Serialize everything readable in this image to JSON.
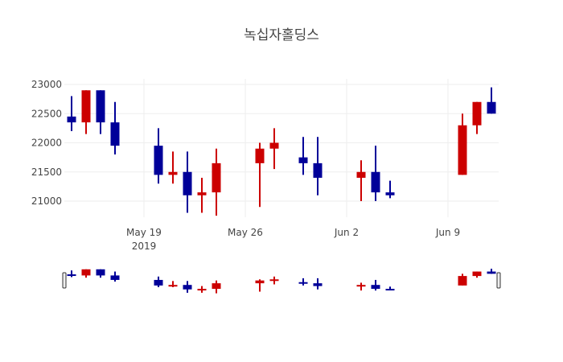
{
  "chart_data": {
    "type": "candlestick",
    "title": "녹십자홀딩스",
    "xlabel": "",
    "ylabel": "",
    "ylim": [
      20650,
      23100
    ],
    "yticks": [
      21000,
      21500,
      22000,
      22500,
      23000
    ],
    "ytick_labels": [
      "21000",
      "21500",
      "22000",
      "22500",
      "23000"
    ],
    "xticks": [
      {
        "date": "2019-05-19",
        "label": "May 19",
        "sublabel": "2019"
      },
      {
        "date": "2019-05-26",
        "label": "May 26",
        "sublabel": ""
      },
      {
        "date": "2019-06-02",
        "label": "Jun 2",
        "sublabel": ""
      },
      {
        "date": "2019-06-09",
        "label": "Jun 9",
        "sublabel": ""
      }
    ],
    "xlim": [
      "2019-05-13T12:00",
      "2019-06-12T12:00"
    ],
    "grid": true,
    "legend": false,
    "rangeslider": true,
    "colors": {
      "increasing": "#cc0000",
      "decreasing": "#000099",
      "grid": "#eeeeee",
      "text": "#444444"
    },
    "x": [
      "2019-05-14",
      "2019-05-15",
      "2019-05-16",
      "2019-05-17",
      "2019-05-20",
      "2019-05-21",
      "2019-05-22",
      "2019-05-23",
      "2019-05-24",
      "2019-05-27",
      "2019-05-28",
      "2019-05-30",
      "2019-05-31",
      "2019-06-03",
      "2019-06-04",
      "2019-06-05",
      "2019-06-10",
      "2019-06-11",
      "2019-06-12"
    ],
    "open": [
      22450,
      22350,
      22900,
      22350,
      21950,
      21450,
      21500,
      21100,
      21150,
      21650,
      21900,
      21750,
      21650,
      21400,
      21500,
      21150,
      21450,
      22300,
      22700
    ],
    "high": [
      22800,
      22900,
      22900,
      22700,
      22250,
      21850,
      21850,
      21400,
      21900,
      22000,
      22250,
      22100,
      22100,
      21700,
      21950,
      21350,
      22500,
      22700,
      22950
    ],
    "low": [
      22200,
      22150,
      22150,
      21800,
      21300,
      21300,
      20800,
      20800,
      20750,
      20900,
      21550,
      21450,
      21100,
      21000,
      21000,
      21050,
      21450,
      22150,
      22500
    ],
    "close": [
      22350,
      22900,
      22350,
      21950,
      21450,
      21500,
      21100,
      21150,
      21650,
      21900,
      22000,
      21650,
      21400,
      21500,
      21150,
      21100,
      22300,
      22700,
      22500
    ]
  }
}
